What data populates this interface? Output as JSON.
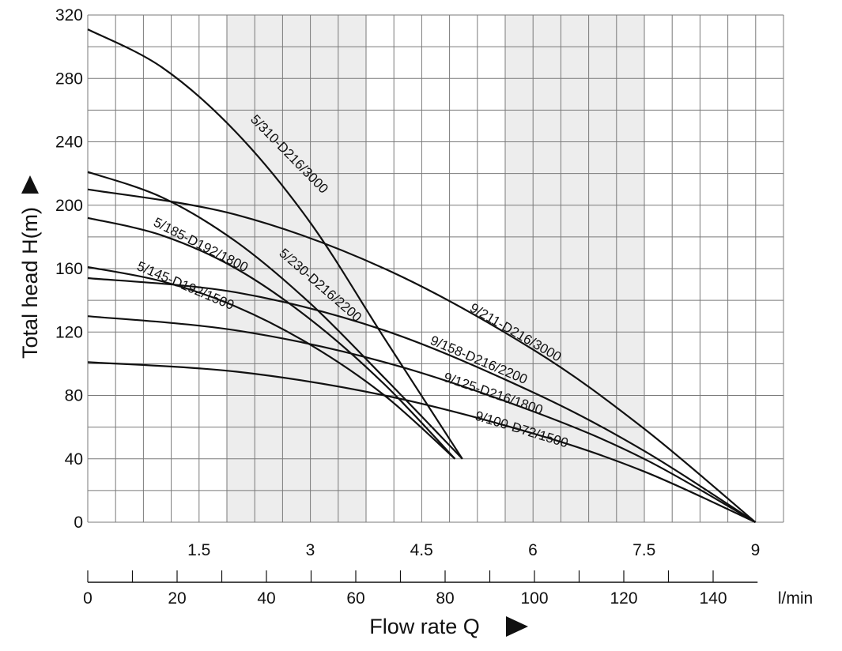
{
  "chart_data": {
    "type": "line",
    "title": "",
    "ylabel": "Total head H(m)",
    "xlabel": "Flow rate Q",
    "x_unit_secondary": "l/min",
    "ylim": [
      0,
      320
    ],
    "xlim": [
      0,
      9.4
    ],
    "y_ticks": [
      "0",
      "40",
      "80",
      "120",
      "160",
      "200",
      "240",
      "280",
      "320"
    ],
    "x_ticks_primary": [
      "1.5",
      "3",
      "4.5",
      "6",
      "7.5",
      "9"
    ],
    "x_ticks_secondary": [
      "0",
      "20",
      "40",
      "60",
      "80",
      "100",
      "120",
      "140"
    ],
    "shaded_x_bands": [
      [
        1.875,
        3.75
      ],
      [
        5.625,
        7.5
      ]
    ],
    "grid": true,
    "series": [
      {
        "name": "5/310-D216/3000",
        "x": [
          0,
          1,
          2,
          3,
          4,
          5.05
        ],
        "y": [
          311,
          287,
          246,
          189,
          116,
          40
        ]
      },
      {
        "name": "5/230-D216/2200",
        "x": [
          0,
          1,
          2,
          3,
          4,
          5.05
        ],
        "y": [
          221,
          205,
          177,
          138,
          91,
          40
        ]
      },
      {
        "name": "5/185-D192/1800",
        "x": [
          0,
          1,
          2,
          3,
          4,
          4.95
        ],
        "y": [
          192,
          181,
          160,
          128,
          87,
          40
        ]
      },
      {
        "name": "5/145-D192/1500",
        "x": [
          0,
          1,
          2,
          3,
          4,
          4.95
        ],
        "y": [
          161,
          152,
          136,
          112,
          80,
          40
        ]
      },
      {
        "name": "9/211-D216/3000",
        "x": [
          0,
          2,
          4,
          6,
          7.5,
          9
        ],
        "y": [
          210,
          194,
          160,
          109,
          59,
          0
        ]
      },
      {
        "name": "9/158-D216/2200",
        "x": [
          0,
          2,
          4,
          6,
          7.5,
          9
        ],
        "y": [
          154,
          145,
          121,
          82,
          45,
          0
        ]
      },
      {
        "name": "9/125-D216/1800",
        "x": [
          0,
          2,
          4,
          6,
          7.5,
          9
        ],
        "y": [
          130,
          121,
          101,
          70,
          40,
          0
        ]
      },
      {
        "name": "9/100-D72/1500",
        "x": [
          0,
          2,
          4,
          6,
          7.5,
          9
        ],
        "y": [
          101,
          95,
          80,
          56,
          32,
          0
        ]
      }
    ]
  }
}
